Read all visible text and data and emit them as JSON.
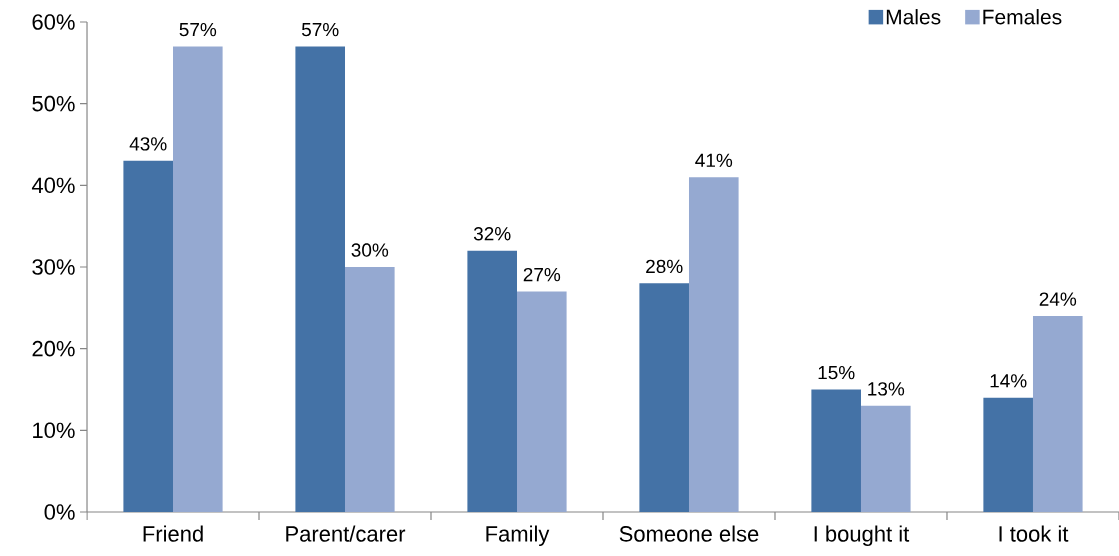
{
  "chart_data": {
    "type": "bar",
    "categories": [
      "Friend",
      "Parent/carer",
      "Family",
      "Someone else",
      "I bought it",
      "I took it"
    ],
    "series": [
      {
        "name": "Males",
        "color": "#4472a6",
        "values": [
          43,
          57,
          32,
          28,
          15,
          14
        ],
        "value_labels": [
          "43%",
          "57%",
          "32%",
          "28%",
          "15%",
          "14%"
        ]
      },
      {
        "name": "Females",
        "color": "#95a9d1",
        "values": [
          57,
          30,
          27,
          41,
          13,
          24
        ],
        "value_labels": [
          "57%",
          "30%",
          "27%",
          "41%",
          "13%",
          "24%"
        ]
      }
    ],
    "ylim": [
      0,
      60
    ],
    "yticks": [
      {
        "value": 0,
        "label": "0%"
      },
      {
        "value": 10,
        "label": "10%"
      },
      {
        "value": 20,
        "label": "20%"
      },
      {
        "value": 30,
        "label": "30%"
      },
      {
        "value": 40,
        "label": "40%"
      },
      {
        "value": 50,
        "label": "50%"
      },
      {
        "value": 60,
        "label": "60%"
      }
    ],
    "legend": "top right"
  }
}
